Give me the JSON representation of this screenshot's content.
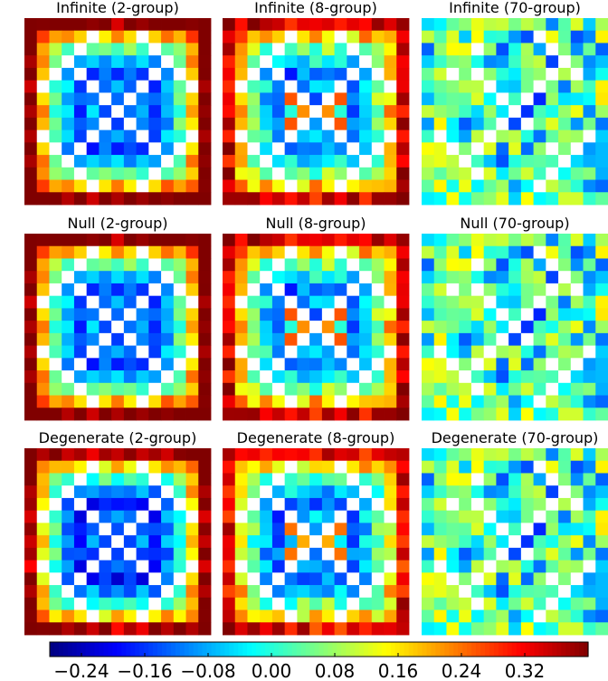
{
  "chart_data": {
    "type": "heatmap",
    "grid": [
      3,
      3
    ],
    "cells_per_side": 15,
    "panels": [
      {
        "title": "Infinite (2-group)",
        "pattern": "a"
      },
      {
        "title": "Infinite (8-group)",
        "pattern": "b"
      },
      {
        "title": "Infinite (70-group)",
        "pattern": "c"
      },
      {
        "title": "Null (2-group)",
        "pattern": "a"
      },
      {
        "title": "Null (8-group)",
        "pattern": "b"
      },
      {
        "title": "Null (70-group)",
        "pattern": "c"
      },
      {
        "title": "Degenerate (2-group)",
        "pattern": "a2"
      },
      {
        "title": "Degenerate (8-group)",
        "pattern": "b2"
      },
      {
        "title": "Degenerate (70-group)",
        "pattern": "c"
      }
    ],
    "colorbar": {
      "colormap": "jet",
      "range": [
        -0.28,
        0.4
      ],
      "ticks": [
        -0.24,
        -0.16,
        -0.08,
        0.0,
        0.08,
        0.16,
        0.24,
        0.32
      ],
      "tick_labels": [
        "−0.24",
        "−0.16",
        "−0.08",
        "0.00",
        "0.08",
        "0.16",
        "0.24",
        "0.32"
      ]
    }
  }
}
